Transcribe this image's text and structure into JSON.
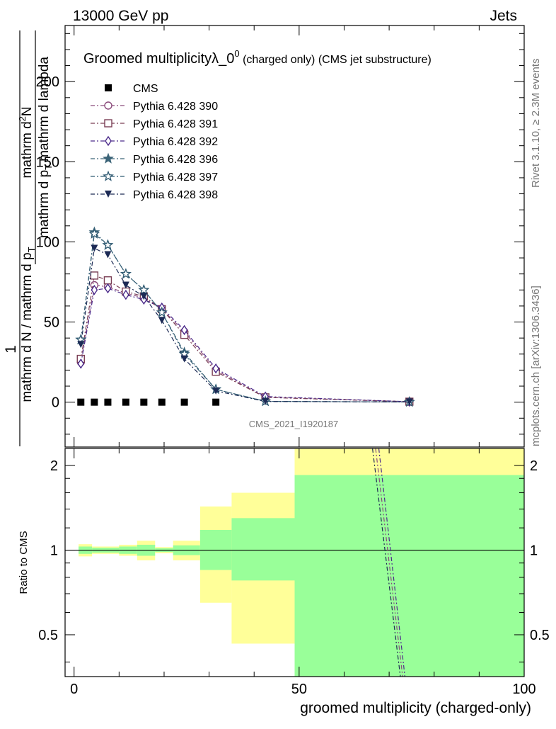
{
  "header": {
    "left": "13000 GeV pp",
    "right": "Jets"
  },
  "main_title": {
    "prefix": "Groomed multiplicity",
    "lambda": "λ_0",
    "sup": "0",
    "suffix": " (charged only) (CMS jet substructure)"
  },
  "side_labels": {
    "rivet": "Rivet 3.1.10, ≥ 2.3M events",
    "mcplots": "mcplots.cern.ch [arXiv:1306.3436]"
  },
  "watermark": "CMS_2021_I1920187",
  "y_label": {
    "numerator_1": "1",
    "denominator_1": "mathrm d N / mathrm d p",
    "denominator_sub": "T",
    "denominator_2": "mathrm d p",
    "denominator_sub2": "T",
    "denominator_3": "mathrm d lambda",
    "numerator_2": "mathrm d",
    "numerator_sup": "2",
    "numerator_3": "N"
  },
  "ratio_ylabel": "Ratio to CMS",
  "x_label": "groomed multiplicity (charged-only)",
  "colors": {
    "CMS": "#000000",
    "Pythia 6.428 390": "#8a4a7a",
    "Pythia 6.428 391": "#7a3f55",
    "Pythia 6.428 392": "#4b2a8a",
    "Pythia 6.428 396": "#3c6478",
    "Pythia 6.428 397": "#2f5a72",
    "Pythia 6.428 398": "#1c2a55",
    "band_inner": "#99ff99",
    "band_outer": "#ffff99"
  },
  "chart_data": {
    "type": "line",
    "x_axis": {
      "range": [
        -2,
        100
      ],
      "ticks": [
        "0",
        "50",
        "100"
      ]
    },
    "main_y_axis": {
      "range": [
        -28,
        235
      ],
      "ticks": [
        "0",
        "50",
        "100",
        "150",
        "200"
      ]
    },
    "ratio_y_axis": {
      "scale": "log",
      "range": [
        0.355,
        2.3
      ],
      "ticks": [
        "0.5",
        "1",
        "2"
      ]
    },
    "x": [
      1.5,
      4.5,
      7.5,
      11.5,
      15.5,
      19.5,
      24.5,
      31.5,
      42.5,
      74.5
    ],
    "series": [
      {
        "name": "CMS",
        "marker": "square",
        "values": [
          0,
          0,
          0,
          0,
          0,
          0,
          0,
          0,
          null,
          null
        ]
      },
      {
        "name": "Pythia 6.428 390",
        "marker": "circle",
        "values": [
          25,
          73,
          72,
          68,
          65,
          58,
          44,
          20,
          3,
          0.3
        ]
      },
      {
        "name": "Pythia 6.428 391",
        "marker": "square-open",
        "values": [
          27,
          79,
          76,
          69,
          66,
          58,
          42,
          19,
          3,
          0.3
        ]
      },
      {
        "name": "Pythia 6.428 392",
        "marker": "diamond",
        "values": [
          24,
          70,
          71,
          67,
          64,
          59,
          45,
          21,
          3.5,
          0.3
        ]
      },
      {
        "name": "Pythia 6.428 396",
        "marker": "star-filled",
        "values": [
          39,
          106,
          98,
          80,
          70,
          56,
          31,
          8,
          0.5,
          0.1
        ]
      },
      {
        "name": "Pythia 6.428 397",
        "marker": "star-open",
        "values": [
          39,
          105,
          98,
          80,
          70,
          56,
          30,
          8,
          0.5,
          0.1
        ]
      },
      {
        "name": "Pythia 6.428 398",
        "marker": "triangle-down",
        "values": [
          36,
          96,
          92,
          73,
          66,
          51,
          27,
          7,
          0.4,
          0.1
        ]
      }
    ],
    "ratio_bands": [
      {
        "x": [
          1,
          4
        ],
        "inner": [
          0.97,
          1.03
        ],
        "outer": [
          0.95,
          1.05
        ]
      },
      {
        "x": [
          4,
          10
        ],
        "inner": [
          0.98,
          1.02
        ],
        "outer": [
          0.97,
          1.03
        ]
      },
      {
        "x": [
          10,
          14
        ],
        "inner": [
          0.97,
          1.03
        ],
        "outer": [
          0.955,
          1.045
        ]
      },
      {
        "x": [
          14,
          18
        ],
        "inner": [
          0.955,
          1.045
        ],
        "outer": [
          0.92,
          1.08
        ]
      },
      {
        "x": [
          18,
          22
        ],
        "inner": [
          0.985,
          1.015
        ],
        "outer": [
          0.975,
          1.025
        ]
      },
      {
        "x": [
          22,
          28
        ],
        "inner": [
          0.96,
          1.04
        ],
        "outer": [
          0.92,
          1.08
        ]
      },
      {
        "x": [
          28,
          35
        ],
        "inner": [
          0.85,
          1.18
        ],
        "outer": [
          0.65,
          1.43
        ]
      },
      {
        "x": [
          35,
          49
        ],
        "inner": [
          0.78,
          1.3
        ],
        "outer": [
          0.465,
          1.6
        ]
      },
      {
        "x": [
          49,
          100
        ],
        "inner": [
          0.355,
          1.85
        ],
        "outer": [
          0.355,
          2.3
        ]
      }
    ],
    "ratio_curves": [
      {
        "name": "Pythia 6.428 390",
        "points": [
          [
            67,
            2.3
          ],
          [
            73,
            0.355
          ]
        ]
      },
      {
        "name": "Pythia 6.428 392",
        "points": [
          [
            67.7,
            2.3
          ],
          [
            73.5,
            0.355
          ]
        ]
      },
      {
        "name": "Pythia 6.428 398",
        "points": [
          [
            66.3,
            2.3
          ],
          [
            72.5,
            0.355
          ]
        ]
      }
    ]
  }
}
